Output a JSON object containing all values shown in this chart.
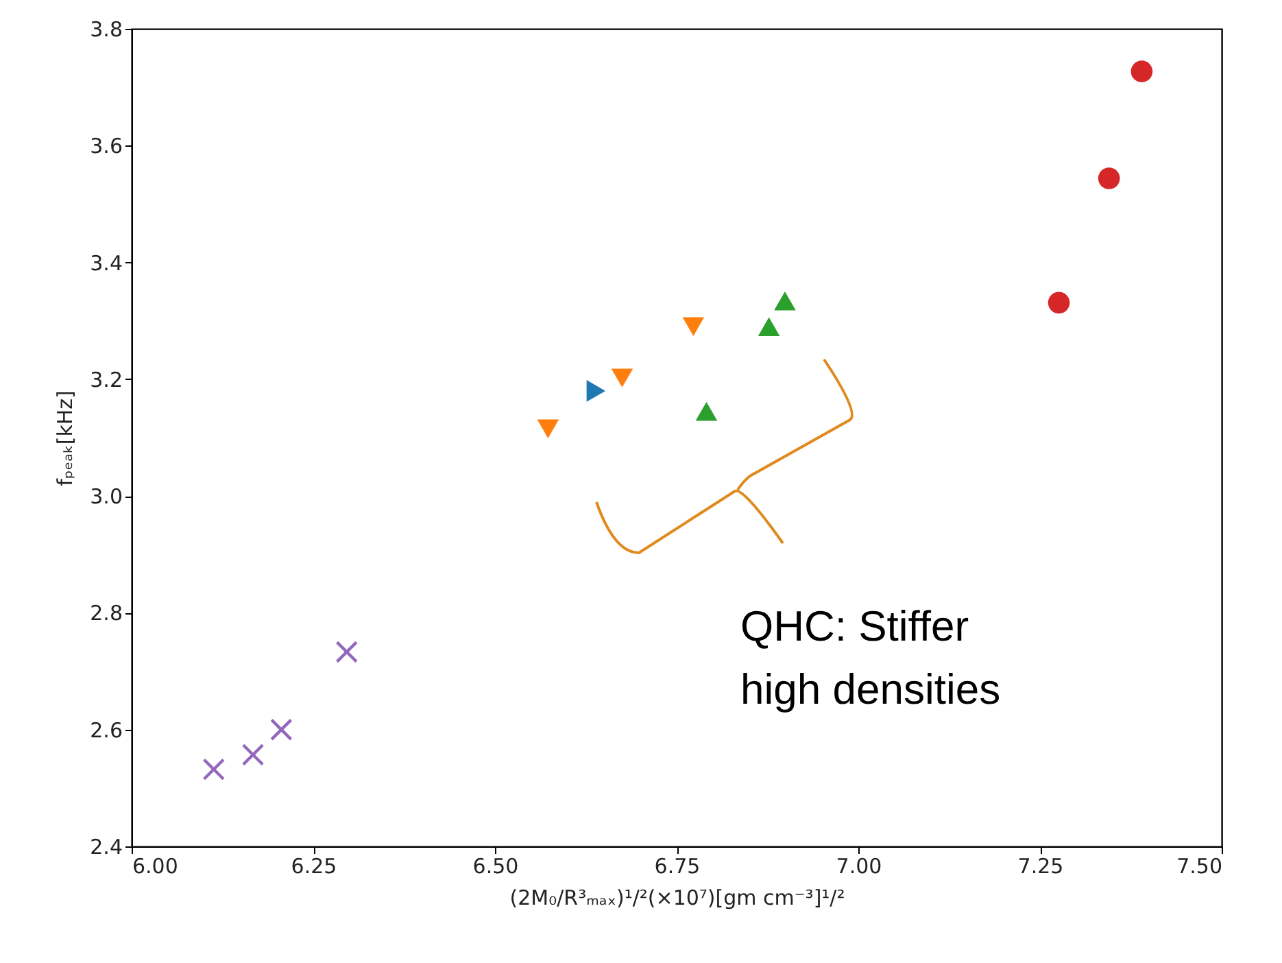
{
  "chart_data": {
    "type": "scatter",
    "xlabel": "(2M₀/R³ₘₐₓ)¹/²(×10⁷)[gm cm⁻³]¹/²",
    "ylabel": "fₚₑₐₖ[kHz]",
    "xlim": [
      6.0,
      7.5
    ],
    "xticks": [
      {
        "value": 6.0,
        "label": "6.00"
      },
      {
        "value": 6.25,
        "label": "6.25"
      },
      {
        "value": 6.5,
        "label": "6.50"
      },
      {
        "value": 6.75,
        "label": "6.75"
      },
      {
        "value": 7.0,
        "label": "7.00"
      },
      {
        "value": 7.25,
        "label": "7.25"
      },
      {
        "value": 7.5,
        "label": "7.50"
      }
    ],
    "ylim": [
      2.4,
      3.8
    ],
    "yticks": [
      2.4,
      2.6,
      2.8,
      {
        "value": 3.0,
        "label": "3.0"
      },
      3.2,
      3.4,
      3.6,
      3.8
    ],
    "grid": false,
    "annotations": [
      "QHC: Stiffer\nhigh densities"
    ],
    "series": [
      {
        "color": "#d62728",
        "marker": "circle",
        "x": [
          7.39,
          7.345,
          7.276
        ],
        "values": [
          3.727,
          3.544,
          3.331
        ]
      },
      {
        "color": "#2ca02c",
        "marker": "triangle",
        "x": [
          6.899,
          6.877,
          6.791
        ],
        "values": [
          3.334,
          3.29,
          3.145
        ]
      },
      {
        "color": "#ff7f0e",
        "marker": "triangle-down",
        "x": [
          6.773,
          6.675,
          6.573
        ],
        "values": [
          3.29,
          3.202,
          3.115
        ]
      },
      {
        "color": "#1f77b4",
        "marker": "triangle-right",
        "x": [
          6.639
        ],
        "values": [
          3.18
        ]
      },
      {
        "color": "#9467bd",
        "marker": "cross",
        "x": [
          6.296,
          6.206,
          6.167,
          6.113
        ],
        "values": [
          2.733,
          2.6,
          2.557,
          2.532
        ]
      }
    ]
  }
}
